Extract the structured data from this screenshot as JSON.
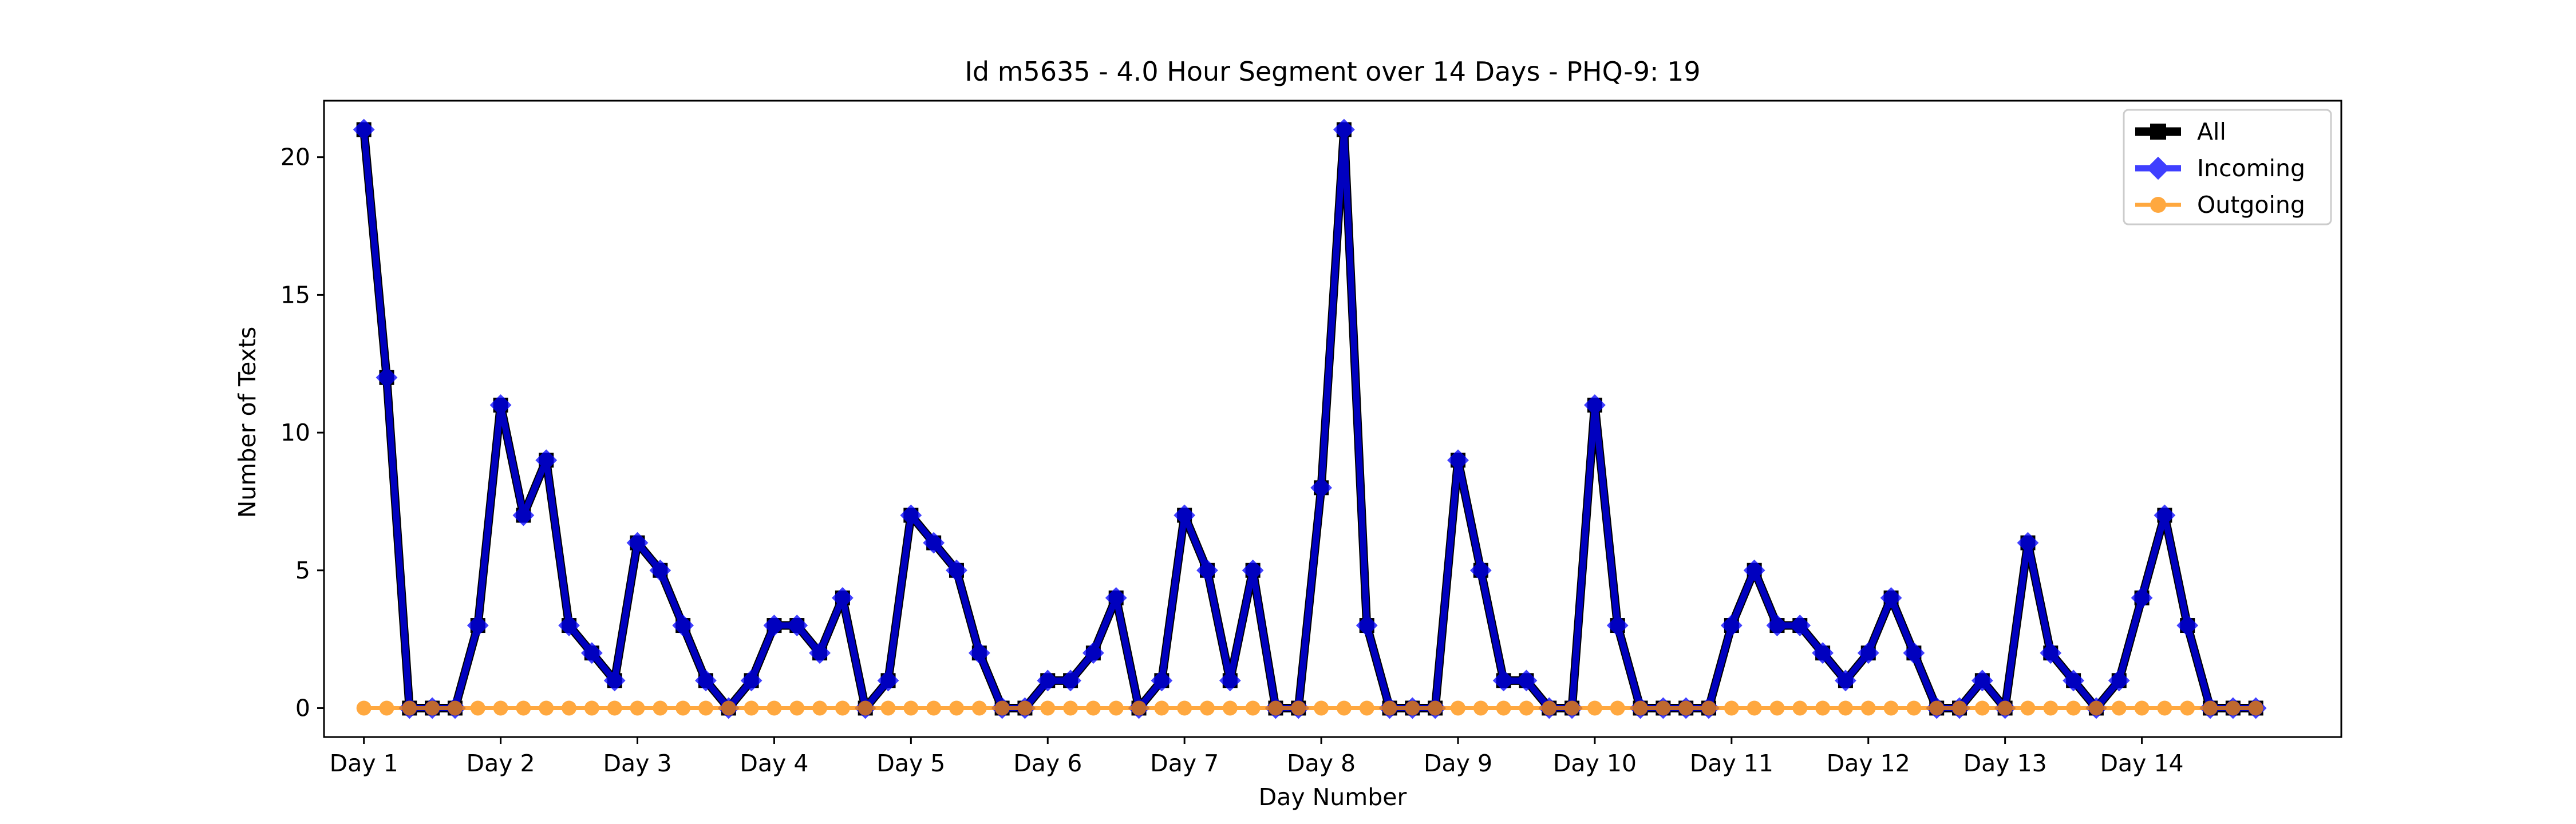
{
  "chart_data": {
    "type": "line",
    "title": "Id m5635 - 4.0 Hour Segment over 14 Days - PHQ-9: 19",
    "xlabel": "Day Number",
    "ylabel": "Number of Texts",
    "x_tick_labels": [
      "Day 1",
      "Day 2",
      "Day 3",
      "Day 4",
      "Day 5",
      "Day 6",
      "Day 7",
      "Day 8",
      "Day 9",
      "Day 10",
      "Day 11",
      "Day 12",
      "Day 13",
      "Day 14"
    ],
    "y_ticks": [
      0,
      5,
      10,
      15,
      20
    ],
    "xlim": [
      -1.75,
      86.75
    ],
    "ylim": [
      -1.05,
      22.05
    ],
    "grid": false,
    "legend_position": "top-right",
    "segments_per_day": 6,
    "series": [
      {
        "name": "All",
        "color": "#000000",
        "marker": "square",
        "values": [
          21,
          12,
          0,
          0,
          0,
          3,
          11,
          7,
          9,
          3,
          2,
          1,
          6,
          5,
          3,
          1,
          0,
          1,
          3,
          3,
          2,
          4,
          0,
          1,
          7,
          6,
          5,
          2,
          0,
          0,
          1,
          1,
          2,
          4,
          0,
          1,
          7,
          5,
          1,
          5,
          0,
          0,
          8,
          21,
          3,
          0,
          0,
          0,
          9,
          5,
          1,
          1,
          0,
          0,
          11,
          3,
          0,
          0,
          0,
          0,
          3,
          5,
          3,
          3,
          2,
          1,
          2,
          4,
          2,
          0,
          0,
          1,
          0,
          6,
          2,
          1,
          0,
          1,
          4,
          7,
          3,
          0,
          0,
          0
        ]
      },
      {
        "name": "Incoming",
        "color": "#0000ff",
        "marker": "diamond",
        "values": [
          21,
          12,
          0,
          0,
          0,
          3,
          11,
          7,
          9,
          3,
          2,
          1,
          6,
          5,
          3,
          1,
          0,
          1,
          3,
          3,
          2,
          4,
          0,
          1,
          7,
          6,
          5,
          2,
          0,
          0,
          1,
          1,
          2,
          4,
          0,
          1,
          7,
          5,
          1,
          5,
          0,
          0,
          8,
          21,
          3,
          0,
          0,
          0,
          9,
          5,
          1,
          1,
          0,
          0,
          11,
          3,
          0,
          0,
          0,
          0,
          3,
          5,
          3,
          3,
          2,
          1,
          2,
          4,
          2,
          0,
          0,
          1,
          0,
          6,
          2,
          1,
          0,
          1,
          4,
          7,
          3,
          0,
          0,
          0
        ]
      },
      {
        "name": "Outgoing",
        "color": "#ff8c00",
        "marker": "circle",
        "values": [
          0,
          0,
          0,
          0,
          0,
          0,
          0,
          0,
          0,
          0,
          0,
          0,
          0,
          0,
          0,
          0,
          0,
          0,
          0,
          0,
          0,
          0,
          0,
          0,
          0,
          0,
          0,
          0,
          0,
          0,
          0,
          0,
          0,
          0,
          0,
          0,
          0,
          0,
          0,
          0,
          0,
          0,
          0,
          0,
          0,
          0,
          0,
          0,
          0,
          0,
          0,
          0,
          0,
          0,
          0,
          0,
          0,
          0,
          0,
          0,
          0,
          0,
          0,
          0,
          0,
          0,
          0,
          0,
          0,
          0,
          0,
          0,
          0,
          0,
          0,
          0,
          0,
          0,
          0,
          0,
          0,
          0,
          0,
          0
        ]
      }
    ]
  }
}
